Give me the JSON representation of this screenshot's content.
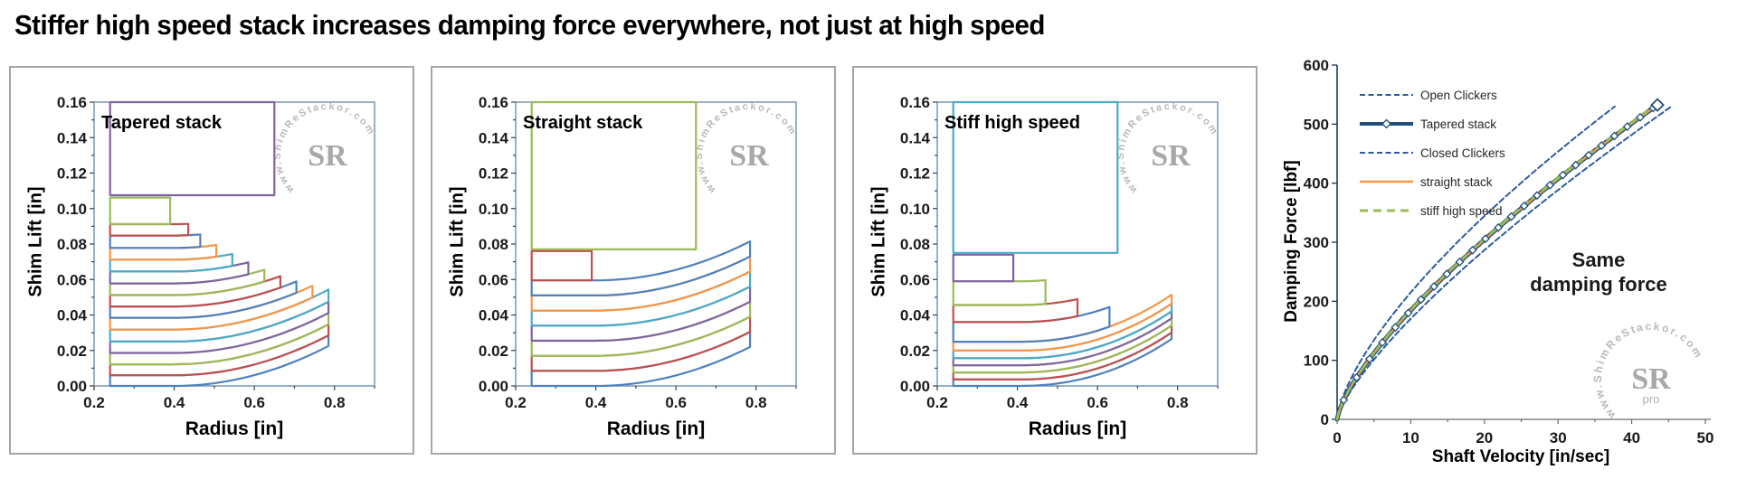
{
  "title": "Stiffer high speed stack increases damping force everywhere, not just at high speed",
  "watermark": {
    "ring": "www.ShimReStackor.com",
    "logo": "SR",
    "sub": "pro"
  },
  "palette": {
    "blue": "#4F81BD",
    "red": "#C0504D",
    "green": "#9BBB59",
    "purple": "#8064A2",
    "teal": "#4BACC6",
    "orange": "#F79646",
    "navy": "#1F4E79",
    "clicker_blue": "#2E5B9F",
    "frame": "#7f9db9",
    "panel_border": "#a6a6a6",
    "watermark_gray": "#a8a8a8"
  },
  "chart_data": [
    {
      "type": "area",
      "title": "Tapered stack",
      "xlabel": "Radius [in]",
      "ylabel": "Shim Lift [in]",
      "xlim": [
        0.2,
        0.9
      ],
      "ylim": [
        0,
        0.16
      ],
      "x_major": 0.2,
      "x_minor": 0.1,
      "y_major": 0.02,
      "y_minor": 0.01,
      "clamp_x": 0.24,
      "deflection": {
        "start_x": 0.4,
        "tip_x": 0.785,
        "max": 0.0225,
        "exp": 2.0
      },
      "shims": [
        {
          "color": "#4F81BD",
          "base": 0.0,
          "top": 0.006,
          "len": 0.785
        },
        {
          "color": "#C0504D",
          "base": 0.006,
          "top": 0.0122,
          "len": 0.785
        },
        {
          "color": "#9BBB59",
          "base": 0.0122,
          "top": 0.0186,
          "len": 0.785
        },
        {
          "color": "#8064A2",
          "base": 0.0186,
          "top": 0.025,
          "len": 0.785
        },
        {
          "color": "#4BACC6",
          "base": 0.025,
          "top": 0.0318,
          "len": 0.785
        },
        {
          "color": "#F79646",
          "base": 0.0318,
          "top": 0.0384,
          "len": 0.745
        },
        {
          "color": "#4F81BD",
          "base": 0.0384,
          "top": 0.0448,
          "len": 0.705
        },
        {
          "color": "#C0504D",
          "base": 0.0448,
          "top": 0.0512,
          "len": 0.665
        },
        {
          "color": "#9BBB59",
          "base": 0.0512,
          "top": 0.0578,
          "len": 0.625
        },
        {
          "color": "#8064A2",
          "base": 0.0578,
          "top": 0.0645,
          "len": 0.585
        },
        {
          "color": "#4BACC6",
          "base": 0.0645,
          "top": 0.0712,
          "len": 0.545
        },
        {
          "color": "#F79646",
          "base": 0.0712,
          "top": 0.0778,
          "len": 0.505
        },
        {
          "color": "#4F81BD",
          "base": 0.0778,
          "top": 0.0848,
          "len": 0.465
        },
        {
          "color": "#C0504D",
          "base": 0.0848,
          "top": 0.0912,
          "len": 0.435
        },
        {
          "color": "#9BBB59",
          "base": 0.0912,
          "top": 0.1062,
          "len": 0.39
        },
        {
          "color": "#8064A2",
          "base": 0.1075,
          "top": 0.16,
          "len": 0.65,
          "flat": true
        }
      ]
    },
    {
      "type": "area",
      "title": "Straight stack",
      "xlabel": "Radius [in]",
      "ylabel": "Shim Lift [in]",
      "xlim": [
        0.2,
        0.9
      ],
      "ylim": [
        0,
        0.16
      ],
      "x_major": 0.2,
      "x_minor": 0.1,
      "y_major": 0.02,
      "y_minor": 0.01,
      "clamp_x": 0.24,
      "deflection": {
        "start_x": 0.4,
        "tip_x": 0.785,
        "max": 0.022,
        "exp": 2.0
      },
      "shims": [
        {
          "color": "#4F81BD",
          "base": 0.0,
          "top": 0.0085,
          "len": 0.785
        },
        {
          "color": "#C0504D",
          "base": 0.0085,
          "top": 0.017,
          "len": 0.785
        },
        {
          "color": "#9BBB59",
          "base": 0.017,
          "top": 0.0255,
          "len": 0.785
        },
        {
          "color": "#8064A2",
          "base": 0.0255,
          "top": 0.034,
          "len": 0.785
        },
        {
          "color": "#4BACC6",
          "base": 0.034,
          "top": 0.0425,
          "len": 0.785
        },
        {
          "color": "#F79646",
          "base": 0.0425,
          "top": 0.051,
          "len": 0.785
        },
        {
          "color": "#4F81BD",
          "base": 0.051,
          "top": 0.0595,
          "len": 0.785
        },
        {
          "color": "#C0504D",
          "base": 0.0595,
          "top": 0.076,
          "len": 0.39
        },
        {
          "color": "#9BBB59",
          "base": 0.077,
          "top": 0.16,
          "len": 0.65,
          "flat": true
        }
      ]
    },
    {
      "type": "area",
      "title": "Stiff high speed",
      "xlabel": "Radius [in]",
      "ylabel": "Shim Lift [in]",
      "xlim": [
        0.2,
        0.9
      ],
      "ylim": [
        0,
        0.16
      ],
      "x_major": 0.2,
      "x_minor": 0.1,
      "y_major": 0.02,
      "y_minor": 0.01,
      "clamp_x": 0.24,
      "deflection": {
        "start_x": 0.4,
        "tip_x": 0.785,
        "max": 0.0265,
        "exp": 2.2
      },
      "shims": [
        {
          "color": "#4F81BD",
          "base": 0.0,
          "top": 0.0036,
          "len": 0.785
        },
        {
          "color": "#C0504D",
          "base": 0.0036,
          "top": 0.0076,
          "len": 0.785
        },
        {
          "color": "#9BBB59",
          "base": 0.0076,
          "top": 0.0116,
          "len": 0.785
        },
        {
          "color": "#8064A2",
          "base": 0.0116,
          "top": 0.0156,
          "len": 0.785
        },
        {
          "color": "#4BACC6",
          "base": 0.0156,
          "top": 0.0199,
          "len": 0.785
        },
        {
          "color": "#F79646",
          "base": 0.0199,
          "top": 0.0249,
          "len": 0.785
        },
        {
          "color": "#4F81BD",
          "base": 0.0249,
          "top": 0.036,
          "len": 0.63
        },
        {
          "color": "#C0504D",
          "base": 0.036,
          "top": 0.0456,
          "len": 0.55
        },
        {
          "color": "#9BBB59",
          "base": 0.0456,
          "top": 0.059,
          "len": 0.47
        },
        {
          "color": "#8064A2",
          "base": 0.059,
          "top": 0.074,
          "len": 0.39
        },
        {
          "color": "#4BACC6",
          "base": 0.075,
          "top": 0.16,
          "len": 0.65,
          "flat": true
        }
      ]
    },
    {
      "type": "line",
      "title": null,
      "xlabel": "Shaft Velocity [in/sec]",
      "ylabel": "Damping Force [lbf]",
      "xlim": [
        0,
        50
      ],
      "ylim": [
        0,
        600
      ],
      "x_major": 10,
      "x_minor": 5,
      "y_major": 100,
      "annotation": [
        "Same",
        "damping force"
      ],
      "series": [
        {
          "name": "Open Clickers",
          "a": 44.9,
          "b": 0.68,
          "v_end": 37.7,
          "color": "#2E5B9F",
          "style": "dashed",
          "width": 2,
          "marker": null
        },
        {
          "name": "Tapered stack",
          "a": 35.2,
          "b": 0.72,
          "v_end": 43.5,
          "color": "#1F4E79",
          "style": "solid",
          "width": 5,
          "marker": "diamond"
        },
        {
          "name": "Closed Clickers",
          "a": 30.3,
          "b": 0.75,
          "v_end": 45.3,
          "color": "#2E5B9F",
          "style": "dashed",
          "width": 2,
          "marker": null
        },
        {
          "name": "straight stack",
          "a": 35.2,
          "b": 0.72,
          "v_end": 43.3,
          "color": "#F79646",
          "style": "solid",
          "width": 2.5,
          "marker": null
        },
        {
          "name": "stiff high speed",
          "a": 35.3,
          "b": 0.72,
          "v_end": 43.4,
          "color": "#9BBB59",
          "style": "dashed",
          "width": 3,
          "marker": null
        }
      ]
    }
  ]
}
